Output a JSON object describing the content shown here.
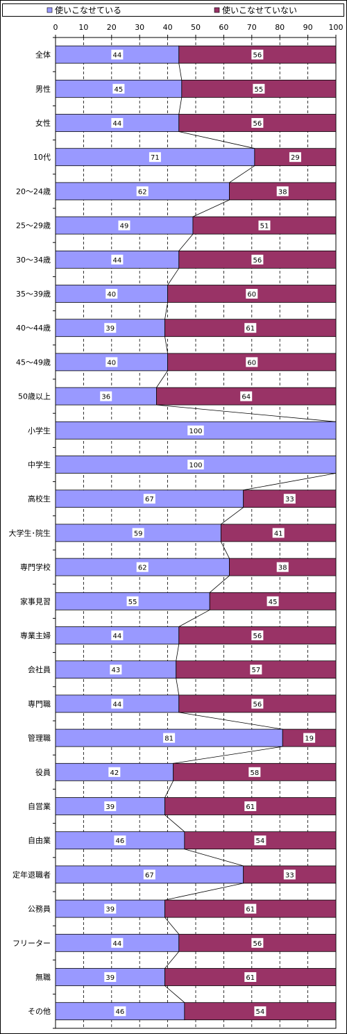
{
  "chart_data": {
    "type": "bar",
    "orientation": "horizontal",
    "stacked": "percent",
    "legend_position": "top",
    "grid": true,
    "xlim": [
      0,
      100
    ],
    "x_ticks": [
      "0",
      "10",
      "20",
      "30",
      "40",
      "50",
      "60",
      "70",
      "80",
      "90",
      "100"
    ],
    "categories": [
      "全体",
      "男性",
      "女性",
      "10代",
      "20～24歳",
      "25～29歳",
      "30～34歳",
      "35～39歳",
      "40～44歳",
      "45～49歳",
      "50歳以上",
      "小学生",
      "中学生",
      "高校生",
      "大学生･院生",
      "専門学校",
      "家事見習",
      "専業主婦",
      "会社員",
      "専門職",
      "管理職",
      "役員",
      "自営業",
      "自由業",
      "定年退職者",
      "公務員",
      "フリーター",
      "無職",
      "その他"
    ],
    "series": [
      {
        "name": "使いこなせている",
        "color": "#9999ff",
        "values": [
          44,
          45,
          44,
          71,
          62,
          49,
          44,
          40,
          39,
          40,
          36,
          100,
          100,
          67,
          59,
          62,
          55,
          44,
          43,
          44,
          81,
          42,
          39,
          46,
          67,
          39,
          44,
          39,
          46
        ]
      },
      {
        "name": "使いこなせていない",
        "color": "#993366",
        "values": [
          56,
          55,
          56,
          29,
          38,
          51,
          56,
          60,
          61,
          60,
          64,
          0,
          0,
          33,
          41,
          38,
          45,
          56,
          57,
          56,
          19,
          58,
          61,
          54,
          33,
          61,
          56,
          61,
          54
        ]
      }
    ]
  }
}
